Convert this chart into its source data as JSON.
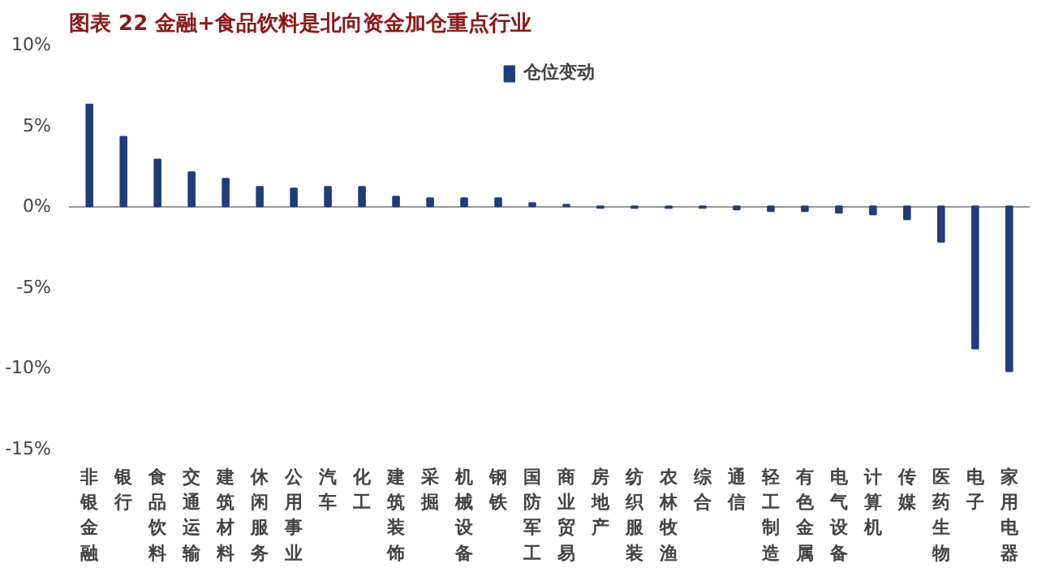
{
  "chart_data": {
    "type": "bar",
    "title": "图表 22   金融+食品饮料是北向资金加仓重点行业",
    "categories": [
      "非银金融",
      "银行",
      "食品饮料",
      "交通运输",
      "建筑材料",
      "休闲服务",
      "公用事业",
      "汽车",
      "化工",
      "建筑装饰",
      "采掘",
      "机械设备",
      "钢铁",
      "国防军工",
      "商业贸易",
      "房地产",
      "纺织服装",
      "农林牧渔",
      "综合",
      "通信",
      "轻工制造",
      "有色金属",
      "电气设备",
      "计算机",
      "传媒",
      "医药生物",
      "电子",
      "家用电器"
    ],
    "series": [
      {
        "name": "仓位变动",
        "color": "#1f3d7a",
        "values": [
          6.3,
          4.3,
          2.9,
          2.1,
          1.7,
          1.2,
          1.1,
          1.2,
          1.2,
          0.6,
          0.5,
          0.5,
          0.5,
          0.2,
          0.1,
          -0.1,
          -0.1,
          -0.1,
          -0.1,
          -0.2,
          -0.3,
          -0.3,
          -0.4,
          -0.5,
          -0.8,
          -2.2,
          -8.8,
          -10.2
        ]
      }
    ],
    "ylim": [
      -15,
      10
    ],
    "yticks": [
      {
        "value": 10,
        "label": "10%"
      },
      {
        "value": 5,
        "label": "5%"
      },
      {
        "value": 0,
        "label": "0%"
      },
      {
        "value": -5,
        "label": "-5%"
      },
      {
        "value": -10,
        "label": "-10%"
      },
      {
        "value": -15,
        "label": "-15%"
      }
    ],
    "legend": "top"
  }
}
